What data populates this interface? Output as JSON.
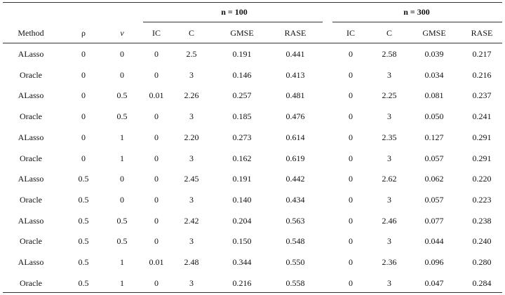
{
  "table": {
    "group_headers": [
      "n = 100",
      "n = 300"
    ],
    "columns": [
      "Method",
      "ρ",
      "ν",
      "IC",
      "C",
      "GMSE",
      "RASE",
      "IC",
      "C",
      "GMSE",
      "RASE"
    ],
    "rows": [
      [
        "ALasso",
        "0",
        "0",
        "0",
        "2.5",
        "0.191",
        "0.441",
        "0",
        "2.58",
        "0.039",
        "0.217"
      ],
      [
        "Oracle",
        "0",
        "0",
        "0",
        "3",
        "0.146",
        "0.413",
        "0",
        "3",
        "0.034",
        "0.216"
      ],
      [
        "ALasso",
        "0",
        "0.5",
        "0.01",
        "2.26",
        "0.257",
        "0.481",
        "0",
        "2.25",
        "0.081",
        "0.237"
      ],
      [
        "Oracle",
        "0",
        "0.5",
        "0",
        "3",
        "0.185",
        "0.476",
        "0",
        "3",
        "0.050",
        "0.241"
      ],
      [
        "ALasso",
        "0",
        "1",
        "0",
        "2.20",
        "0.273",
        "0.614",
        "0",
        "2.35",
        "0.127",
        "0.291"
      ],
      [
        "Oracle",
        "0",
        "1",
        "0",
        "3",
        "0.162",
        "0.619",
        "0",
        "3",
        "0.057",
        "0.291"
      ],
      [
        "ALasso",
        "0.5",
        "0",
        "0",
        "2.45",
        "0.191",
        "0.442",
        "0",
        "2.62",
        "0.062",
        "0.220"
      ],
      [
        "Oracle",
        "0.5",
        "0",
        "0",
        "3",
        "0.140",
        "0.434",
        "0",
        "3",
        "0.057",
        "0.223"
      ],
      [
        "ALasso",
        "0.5",
        "0.5",
        "0",
        "2.42",
        "0.204",
        "0.563",
        "0",
        "2.46",
        "0.077",
        "0.238"
      ],
      [
        "Oracle",
        "0.5",
        "0.5",
        "0",
        "3",
        "0.150",
        "0.548",
        "0",
        "3",
        "0.044",
        "0.240"
      ],
      [
        "ALasso",
        "0.5",
        "1",
        "0.01",
        "2.48",
        "0.344",
        "0.550",
        "0",
        "2.36",
        "0.096",
        "0.280"
      ],
      [
        "Oracle",
        "0.5",
        "1",
        "0",
        "3",
        "0.216",
        "0.558",
        "0",
        "3",
        "0.047",
        "0.284"
      ]
    ]
  }
}
